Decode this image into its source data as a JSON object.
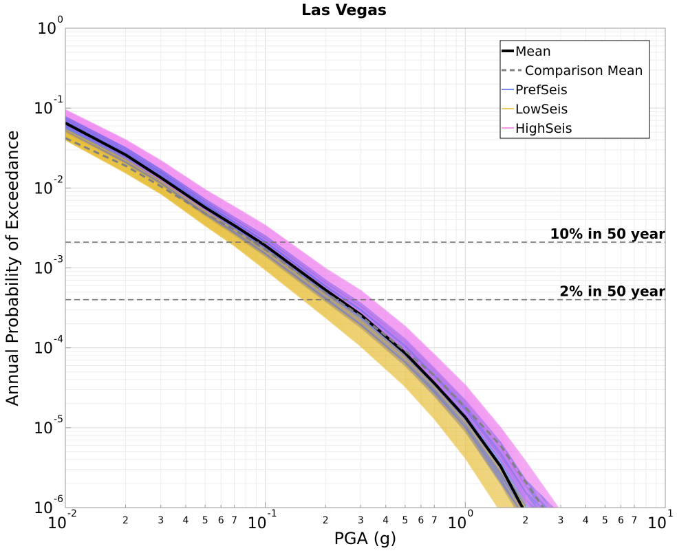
{
  "chart_data": {
    "type": "line",
    "title": "Las Vegas",
    "xlabel": "PGA (g)",
    "ylabel": "Annual Probability of Exceedance",
    "x_scale": "log",
    "y_scale": "log",
    "xlim": [
      0.01,
      10
    ],
    "ylim": [
      1e-06,
      1
    ],
    "grid": true,
    "legend_position": "top-right",
    "x_major_ticks": [
      {
        "base": "10",
        "exp": "-2"
      },
      {
        "base": "10",
        "exp": "-1"
      },
      {
        "base": "10",
        "exp": "0"
      },
      {
        "base": "10",
        "exp": "1"
      }
    ],
    "y_major_ticks": [
      {
        "base": "10",
        "exp": "0"
      },
      {
        "base": "10",
        "exp": "-1"
      },
      {
        "base": "10",
        "exp": "-2"
      },
      {
        "base": "10",
        "exp": "-3"
      },
      {
        "base": "10",
        "exp": "-4"
      },
      {
        "base": "10",
        "exp": "-5"
      },
      {
        "base": "10",
        "exp": "-6"
      }
    ],
    "x_minor_tick_labels": [
      "2",
      "3",
      "4",
      "5",
      "6",
      "7"
    ],
    "x": [
      0.01,
      0.02,
      0.03,
      0.05,
      0.07,
      0.1,
      0.2,
      0.3,
      0.5,
      0.7,
      1.0,
      1.5,
      2.0,
      3.0
    ],
    "series": [
      {
        "name": "Mean",
        "color": "#000000",
        "style": "solid",
        "values": [
          0.065,
          0.026,
          0.0135,
          0.0057,
          0.0034,
          0.0019,
          0.00053,
          0.00026,
          8.6e-05,
          3.6e-05,
          1.35e-05,
          3.3e-06,
          8.5e-07,
          null
        ]
      },
      {
        "name": "Comparison Mean",
        "color": "#808080",
        "style": "dashed",
        "values": [
          0.042,
          0.019,
          0.0105,
          0.0048,
          0.003,
          0.0017,
          0.00049,
          0.00025,
          9.2e-05,
          4.5e-05,
          1.8e-05,
          6e-06,
          2.1e-06,
          null
        ]
      },
      {
        "name": "PrefSeis",
        "color": "#4b62e8",
        "style": "band",
        "lower": [
          0.05,
          0.02,
          0.011,
          0.0045,
          0.0026,
          0.0014,
          0.00038,
          0.00018,
          6e-05,
          2.5e-05,
          9e-06,
          2e-06,
          6e-07,
          null
        ],
        "upper": [
          0.078,
          0.032,
          0.017,
          0.0072,
          0.0043,
          0.0025,
          0.0007,
          0.00036,
          0.000128,
          5.5e-05,
          2.2e-05,
          6.5e-06,
          2.2e-06,
          8e-07
        ]
      },
      {
        "name": "LowSeis",
        "color": "#e6b92a",
        "style": "band",
        "lower": [
          0.04,
          0.0155,
          0.0085,
          0.0034,
          0.0019,
          0.00095,
          0.00024,
          0.000105,
          3.3e-05,
          1.3e-05,
          4.2e-06,
          9e-07,
          null,
          null
        ],
        "upper": [
          0.055,
          0.023,
          0.0125,
          0.0053,
          0.0031,
          0.0017,
          0.00048,
          0.00023,
          8e-05,
          3.5e-05,
          1.3e-05,
          3.3e-06,
          1.1e-06,
          null
        ]
      },
      {
        "name": "HighSeis",
        "color": "#ee78ee",
        "style": "band",
        "lower": [
          0.06,
          0.024,
          0.0125,
          0.0053,
          0.0032,
          0.0018,
          0.0005,
          0.00025,
          9e-05,
          3.8e-05,
          1.5e-05,
          4e-06,
          1.2e-06,
          null
        ],
        "upper": [
          0.095,
          0.04,
          0.022,
          0.0095,
          0.0058,
          0.0034,
          0.00098,
          0.00052,
          0.000185,
          8.2e-05,
          3.4e-05,
          1e-05,
          3.8e-06,
          9e-07
        ]
      }
    ],
    "reference_lines": [
      {
        "label": "10% in 50 year",
        "y": 0.0021
      },
      {
        "label": "2% in 50 year",
        "y": 0.0004
      }
    ]
  }
}
